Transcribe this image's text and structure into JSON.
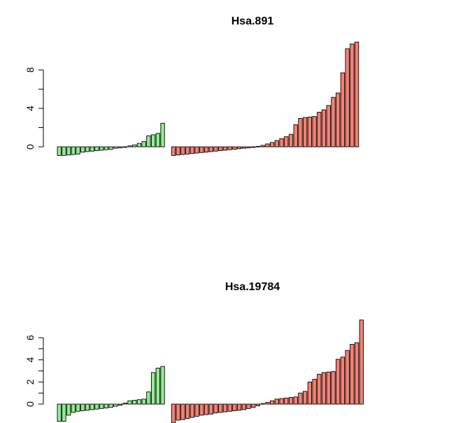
{
  "chart_data": [
    {
      "type": "bar",
      "title": "Hsa.891",
      "xlabel": "",
      "ylabel": "",
      "ylim": [
        -1.2,
        11
      ],
      "yticks": [
        0,
        4,
        8
      ],
      "grid": false,
      "legend": "none",
      "series": [
        {
          "color": "#90EE90",
          "values": [
            -0.9,
            -0.9,
            -0.85,
            -0.8,
            -0.75,
            -0.55,
            -0.5,
            -0.45,
            -0.4,
            -0.35,
            -0.3,
            -0.25,
            -0.15,
            -0.1,
            -0.05,
            0.1,
            0.2,
            0.35,
            0.55,
            1.15,
            1.25,
            1.4,
            2.45
          ]
        },
        {
          "color": "#FA8072",
          "values": [
            -0.9,
            -0.85,
            -0.8,
            -0.75,
            -0.7,
            -0.65,
            -0.6,
            -0.55,
            -0.5,
            -0.45,
            -0.4,
            -0.35,
            -0.3,
            -0.25,
            -0.2,
            -0.15,
            -0.1,
            -0.05,
            0.05,
            0.15,
            0.3,
            0.45,
            0.65,
            0.85,
            1.05,
            1.3,
            2.3,
            2.95,
            3.05,
            3.1,
            3.15,
            3.6,
            3.85,
            4.3,
            5.15,
            5.6,
            7.7,
            10.2,
            10.7,
            10.9
          ]
        }
      ]
    },
    {
      "type": "bar",
      "title": "Hsa.19784",
      "xlabel": "",
      "ylabel": "",
      "ylim": [
        -1.8,
        7.8
      ],
      "yticks": [
        0,
        2,
        4,
        6
      ],
      "grid": false,
      "legend": "none",
      "series": [
        {
          "color": "#90EE90",
          "values": [
            -1.55,
            -1.55,
            -1.0,
            -0.75,
            -0.65,
            -0.6,
            -0.55,
            -0.5,
            -0.45,
            -0.4,
            -0.35,
            -0.3,
            -0.2,
            -0.1,
            0.1,
            0.3,
            0.35,
            0.4,
            0.45,
            1.1,
            2.85,
            3.25,
            3.4
          ]
        },
        {
          "color": "#FA8072",
          "values": [
            -1.7,
            -1.45,
            -1.4,
            -1.3,
            -1.2,
            -1.1,
            -1.0,
            -0.95,
            -0.9,
            -0.8,
            -0.75,
            -0.7,
            -0.65,
            -0.6,
            -0.55,
            -0.5,
            -0.4,
            -0.3,
            -0.15,
            0.05,
            0.15,
            0.3,
            0.45,
            0.5,
            0.55,
            0.6,
            0.65,
            1.0,
            1.15,
            2.0,
            2.25,
            2.7,
            2.85,
            2.9,
            2.95,
            4.05,
            4.25,
            4.85,
            5.4,
            5.55,
            7.6
          ]
        }
      ]
    }
  ]
}
